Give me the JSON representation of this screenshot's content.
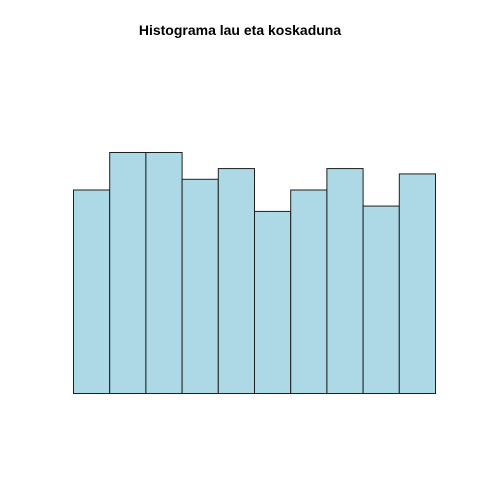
{
  "chart_data": {
    "type": "bar",
    "title": "Histograma lau eta koskaduna",
    "xlabel": "",
    "ylabel": "",
    "values": [
      38,
      45,
      45,
      40,
      42,
      34,
      38,
      42,
      35,
      41
    ],
    "ylim": [
      0,
      45
    ],
    "grid": false,
    "axes_shown": false,
    "bar_fill": "#add8e6",
    "bar_stroke": "#1f1f1f",
    "background": "#ffffff"
  }
}
